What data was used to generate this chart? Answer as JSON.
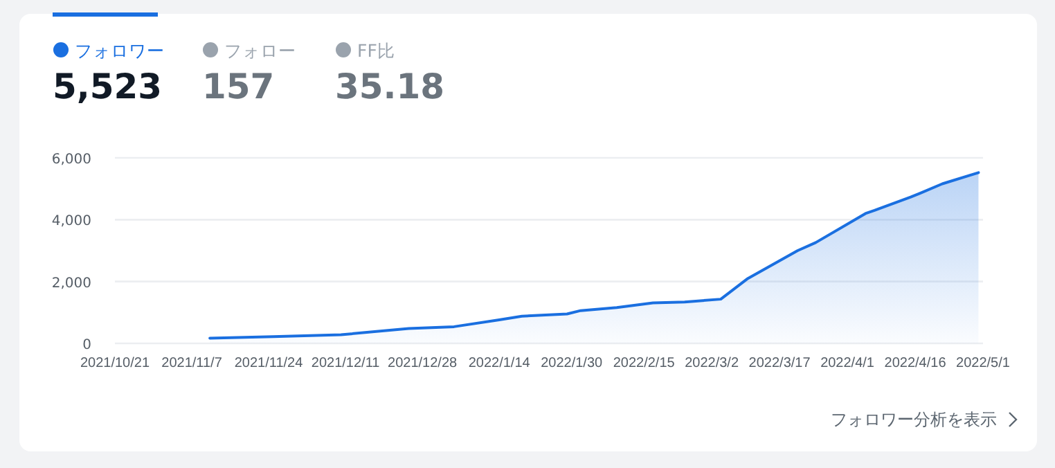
{
  "chart_data": {
    "type": "area",
    "legend": "top left",
    "grid": "y",
    "marker": "none",
    "line_style": "solid",
    "x": [
      "2021-11-11",
      "2021-11-25",
      "2021-12-10",
      "2021-12-25",
      "2022-01-04",
      "2022-01-14",
      "2022-01-19",
      "2022-01-29",
      "2022-02-01",
      "2022-02-09",
      "2022-02-17",
      "2022-02-24",
      "2022-03-04",
      "2022-03-10",
      "2022-03-21",
      "2022-03-25",
      "2022-04-05",
      "2022-04-07",
      "2022-04-15",
      "2022-04-17",
      "2022-04-22",
      "2022-04-30"
    ],
    "series": [
      {
        "name": "フォロワー",
        "color": "#1a6fe0",
        "values": [
          170,
          220,
          280,
          480,
          540,
          760,
          880,
          950,
          1060,
          1160,
          1310,
          1340,
          1430,
          2100,
          3000,
          3260,
          4200,
          4300,
          4730,
          4850,
          5160,
          5523
        ]
      }
    ],
    "xlim": [
      "2021-10-21",
      "2022-05-01"
    ],
    "xticks": [
      {
        "value": "2021-10-21",
        "label": "2021/10/21"
      },
      {
        "value": "2021-11-07",
        "label": "2021/11/7"
      },
      {
        "value": "2021-11-24",
        "label": "2021/11/24"
      },
      {
        "value": "2021-12-11",
        "label": "2021/12/11"
      },
      {
        "value": "2021-12-28",
        "label": "2021/12/28"
      },
      {
        "value": "2022-01-14",
        "label": "2022/1/14"
      },
      {
        "value": "2022-01-30",
        "label": "2022/1/30"
      },
      {
        "value": "2022-02-15",
        "label": "2022/2/15"
      },
      {
        "value": "2022-03-02",
        "label": "2022/3/2"
      },
      {
        "value": "2022-03-17",
        "label": "2022/3/17"
      },
      {
        "value": "2022-04-01",
        "label": "2022/4/1"
      },
      {
        "value": "2022-04-16",
        "label": "2022/4/16"
      },
      {
        "value": "2022-05-01",
        "label": "2022/5/1"
      }
    ],
    "ylim": [
      0,
      6000
    ],
    "yticks": [
      0,
      {
        "value": 2000,
        "label": "2,000"
      },
      {
        "value": 4000,
        "label": "4,000"
      },
      {
        "value": 6000,
        "label": "6,000"
      }
    ],
    "annotations": [
      "5,523",
      "フォロー",
      "157",
      "FF比",
      "35.18",
      "フォロワー分析を表示"
    ]
  }
}
